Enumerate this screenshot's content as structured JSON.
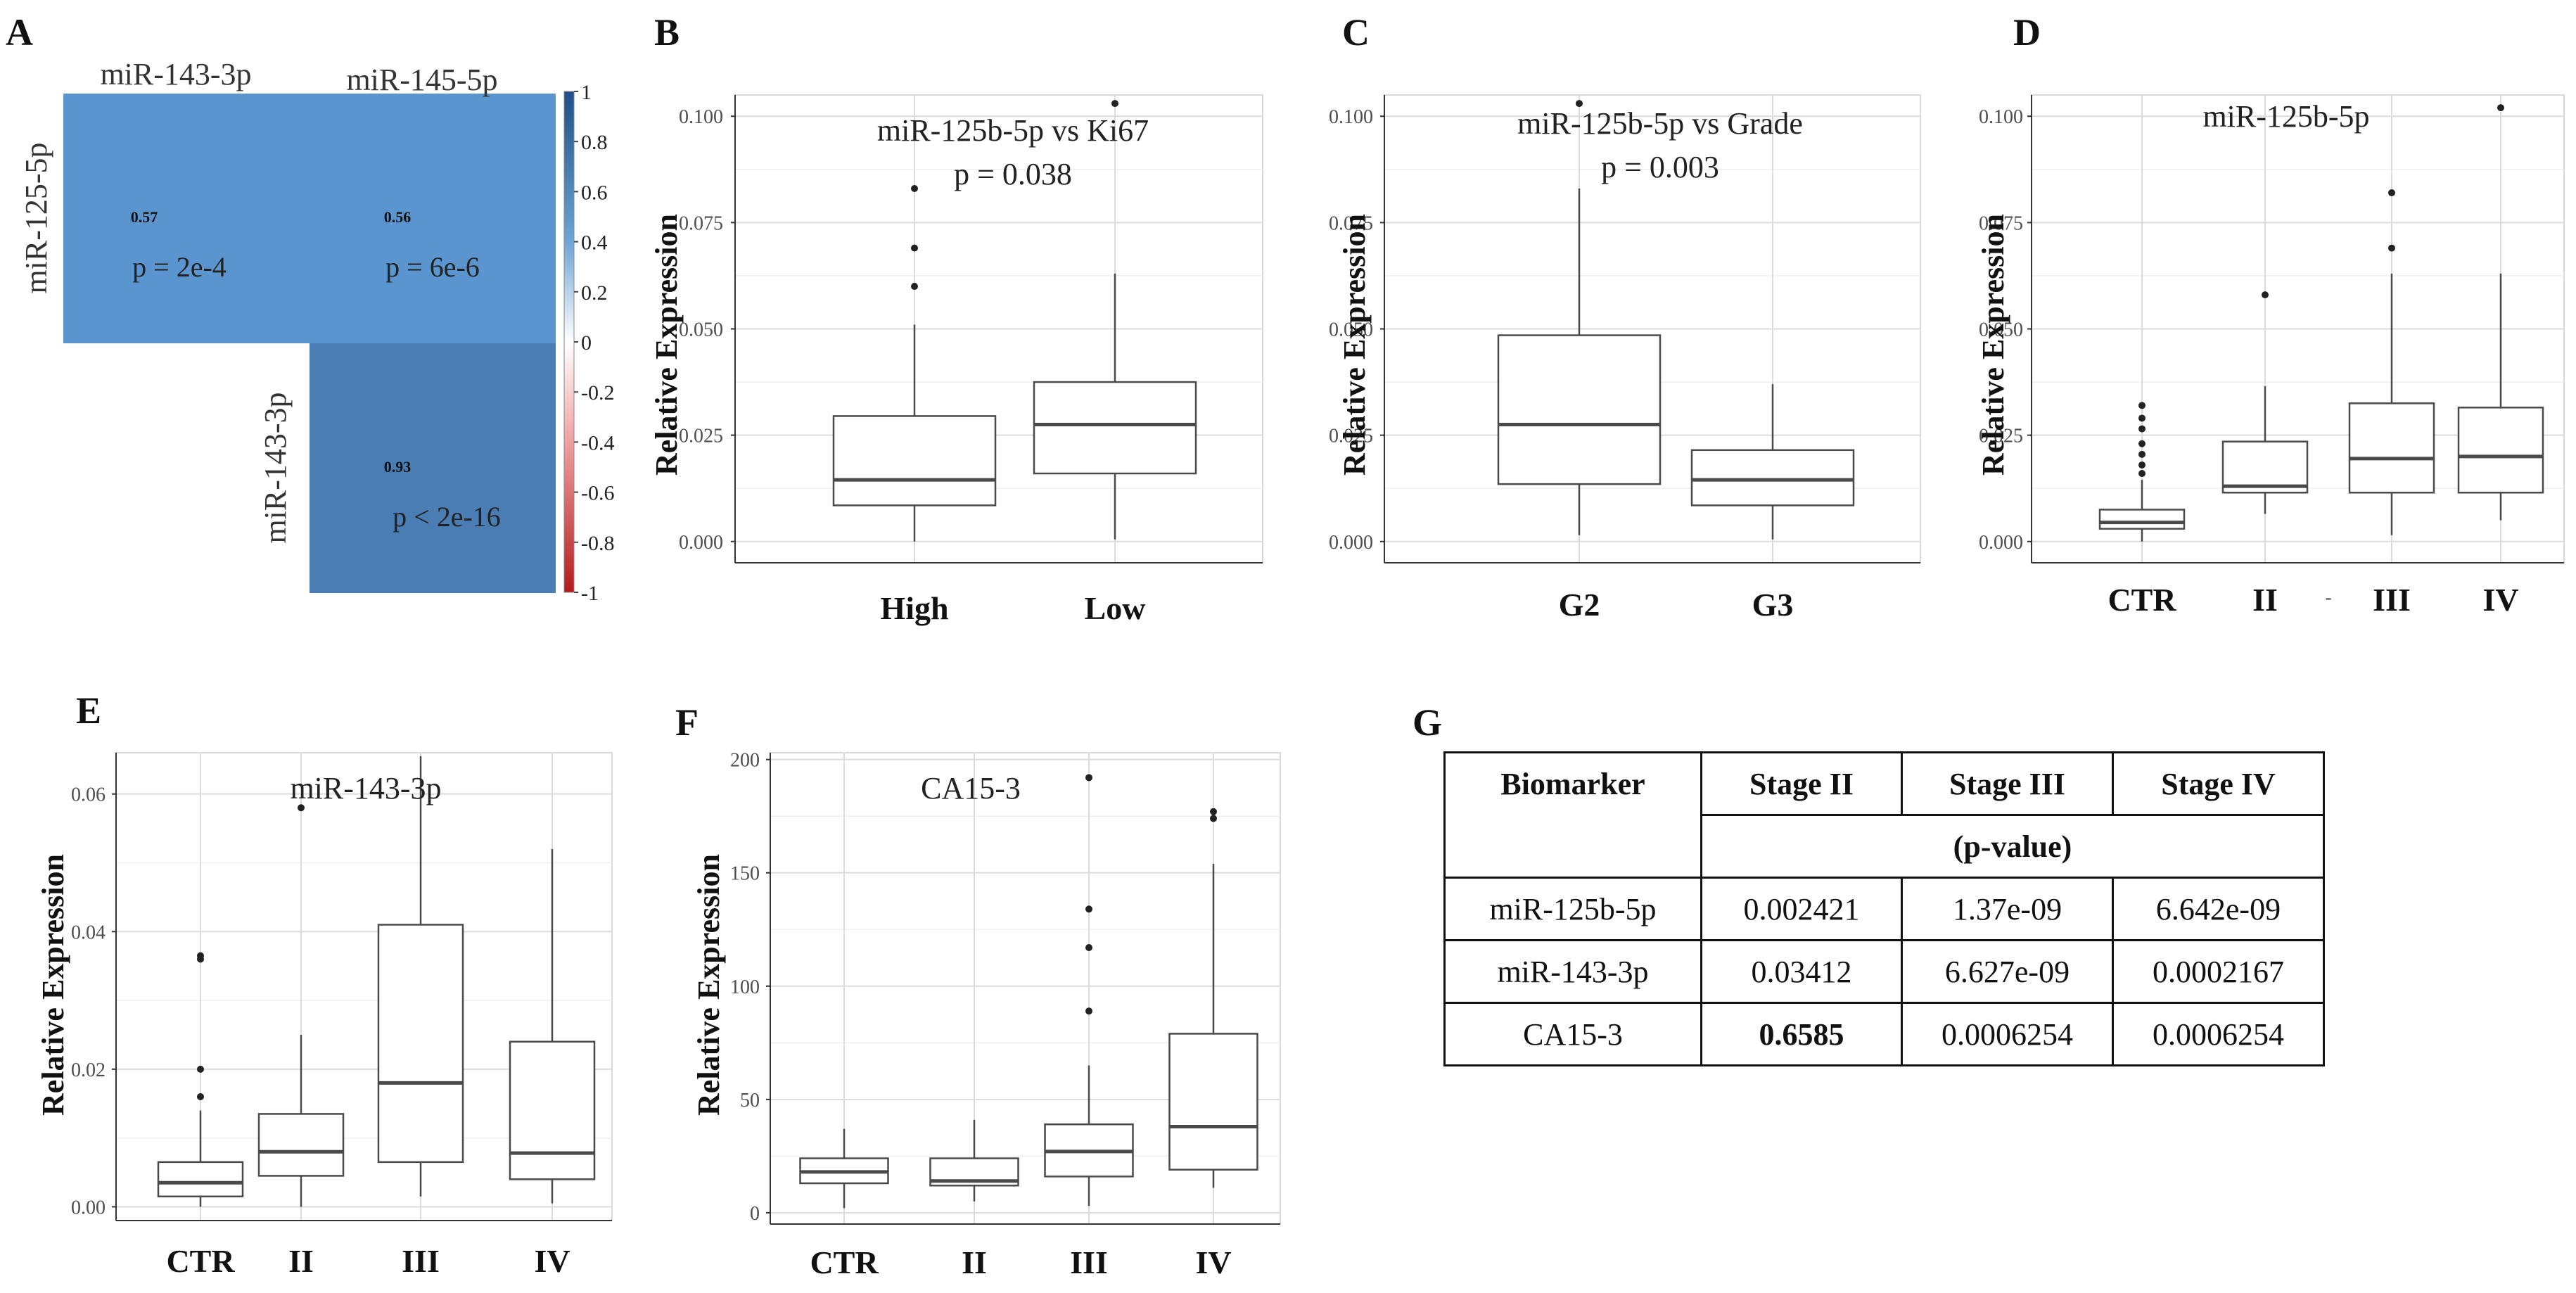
{
  "panel_letters": {
    "a": "A",
    "b": "B",
    "c": "C",
    "d": "D",
    "e": "E",
    "f": "F",
    "g": "G"
  },
  "colors": {
    "corr_positive": "#5b95cf",
    "corr_strong": "#4a7db3",
    "corr_negative": "#d94a4a",
    "box_stroke": "#4a4a4a"
  },
  "chart_data": [
    {
      "id": "A",
      "type": "heatmap",
      "col_labels": [
        "miR-143-3p",
        "miR-145-5p"
      ],
      "row_labels": [
        "miR-125-5p",
        "miR-143-3p"
      ],
      "cells": [
        {
          "row": 0,
          "col": 0,
          "value": 0.57,
          "value_label": "0.57",
          "p_label": "p = 2e-4"
        },
        {
          "row": 0,
          "col": 1,
          "value": 0.56,
          "value_label": "0.56",
          "p_label": "p = 6e-6"
        },
        {
          "row": 1,
          "col": 1,
          "value": 0.93,
          "value_label": "0.93",
          "p_label": "p < 2e-16"
        }
      ],
      "colorbar": {
        "ticks": [
          "1",
          "0.8",
          "0.6",
          "0.4",
          "0.2",
          "0",
          "-0.2",
          "-0.4",
          "-0.6",
          "-0.8",
          "-1"
        ],
        "range": [
          -1,
          1
        ]
      }
    },
    {
      "id": "B",
      "type": "box",
      "title": "miR-125b-5p vs Ki67",
      "subtitle": "p = 0.038",
      "ylabel": "Relative Expression",
      "ylim": [
        -0.005,
        0.105
      ],
      "yticks": [
        0,
        0.025,
        0.05,
        0.075,
        0.1
      ],
      "ytick_labels": [
        "0.000",
        "0.025",
        "0.050",
        "0.075",
        "0.100"
      ],
      "categories": [
        "High",
        "Low"
      ],
      "boxes": [
        {
          "min": 0.0,
          "q1": 0.0085,
          "median": 0.0145,
          "q3": 0.0295,
          "max": 0.051,
          "outliers": [
            0.06,
            0.069,
            0.083
          ]
        },
        {
          "min": 0.0005,
          "q1": 0.016,
          "median": 0.0275,
          "q3": 0.0375,
          "max": 0.063,
          "outliers": [
            0.103
          ]
        }
      ]
    },
    {
      "id": "C",
      "type": "box",
      "title": "miR-125b-5p vs Grade",
      "subtitle": "p = 0.003",
      "ylabel": "Relative Expression",
      "ylim": [
        -0.005,
        0.105
      ],
      "yticks": [
        0,
        0.025,
        0.05,
        0.075,
        0.1
      ],
      "ytick_labels": [
        "0.000",
        "0.025",
        "0.050",
        "0.075",
        "0.100"
      ],
      "categories": [
        "G2",
        "G3"
      ],
      "boxes": [
        {
          "min": 0.0015,
          "q1": 0.0135,
          "median": 0.0275,
          "q3": 0.0485,
          "max": 0.083,
          "outliers": [
            0.103
          ]
        },
        {
          "min": 0.0005,
          "q1": 0.0085,
          "median": 0.0145,
          "q3": 0.0215,
          "max": 0.037,
          "outliers": []
        }
      ]
    },
    {
      "id": "D",
      "type": "box",
      "title": "miR-125b-5p",
      "ylabel": "Relative Expression",
      "ylim": [
        -0.005,
        0.105
      ],
      "yticks": [
        0,
        0.025,
        0.05,
        0.075,
        0.1
      ],
      "ytick_labels": [
        "0.000",
        "0.025",
        "0.050",
        "0.075",
        "0.100"
      ],
      "categories": [
        "CTR",
        "II",
        "III",
        "IV"
      ],
      "annotation": "-",
      "boxes": [
        {
          "min": 0.0,
          "q1": 0.003,
          "median": 0.0045,
          "q3": 0.0075,
          "max": 0.0145,
          "outliers": [
            0.016,
            0.018,
            0.0205,
            0.023,
            0.0265,
            0.029,
            0.032
          ]
        },
        {
          "min": 0.0065,
          "q1": 0.0115,
          "median": 0.013,
          "q3": 0.0235,
          "max": 0.0365,
          "outliers": [
            0.058
          ]
        },
        {
          "min": 0.0015,
          "q1": 0.0115,
          "median": 0.0195,
          "q3": 0.0325,
          "max": 0.063,
          "outliers": [
            0.069,
            0.082
          ]
        },
        {
          "min": 0.005,
          "q1": 0.0115,
          "median": 0.02,
          "q3": 0.0315,
          "max": 0.063,
          "outliers": [
            0.102
          ]
        }
      ]
    },
    {
      "id": "E",
      "type": "box",
      "title": "miR-143-3p",
      "ylabel": "Relative Expression",
      "ylim": [
        -0.002,
        0.066
      ],
      "yticks": [
        0,
        0.02,
        0.04,
        0.06
      ],
      "ytick_labels": [
        "0.00",
        "0.02",
        "0.04",
        "0.06"
      ],
      "categories": [
        "CTR",
        "II",
        "III",
        "IV"
      ],
      "boxes": [
        {
          "min": 0.0,
          "q1": 0.0015,
          "median": 0.0035,
          "q3": 0.0065,
          "max": 0.014,
          "outliers": [
            0.016,
            0.02,
            0.036,
            0.0365
          ]
        },
        {
          "min": 0.0,
          "q1": 0.0045,
          "median": 0.008,
          "q3": 0.0135,
          "max": 0.025,
          "outliers": [
            0.058
          ]
        },
        {
          "min": 0.0015,
          "q1": 0.0065,
          "median": 0.018,
          "q3": 0.041,
          "max": 0.0655,
          "outliers": []
        },
        {
          "min": 0.0005,
          "q1": 0.004,
          "median": 0.0078,
          "q3": 0.024,
          "max": 0.052,
          "outliers": []
        }
      ]
    },
    {
      "id": "F",
      "type": "box",
      "title": "CA15-3",
      "ylabel": "Relative Expression",
      "ylim": [
        -5,
        203
      ],
      "yticks": [
        0,
        50,
        100,
        150,
        200
      ],
      "ytick_labels": [
        "0",
        "50",
        "100",
        "150",
        "200"
      ],
      "categories": [
        "CTR",
        "II",
        "III",
        "IV"
      ],
      "boxes": [
        {
          "min": 2,
          "q1": 13,
          "median": 18,
          "q3": 24,
          "max": 37,
          "outliers": []
        },
        {
          "min": 5,
          "q1": 12,
          "median": 14,
          "q3": 24,
          "max": 41,
          "outliers": []
        },
        {
          "min": 3,
          "q1": 16,
          "median": 27,
          "q3": 39,
          "max": 65,
          "outliers": [
            89,
            117,
            134,
            192
          ]
        },
        {
          "min": 11,
          "q1": 19,
          "median": 38,
          "q3": 79,
          "max": 154,
          "outliers": [
            174,
            177
          ]
        }
      ]
    },
    {
      "id": "G",
      "type": "table",
      "header": [
        "Biomarker",
        "Stage II",
        "Stage III",
        "Stage IV"
      ],
      "subheader": "(p-value)",
      "rows": [
        [
          "miR-125b-5p",
          "0.002421",
          "1.37e-09",
          "6.642e-09"
        ],
        [
          "miR-143-3p",
          "0.03412",
          "6.627e-09",
          "0.0002167"
        ],
        [
          "CA15-3",
          "0.6585",
          "0.0006254",
          "0.0006254"
        ]
      ],
      "bold_cells": [
        [
          2,
          1
        ]
      ]
    }
  ]
}
